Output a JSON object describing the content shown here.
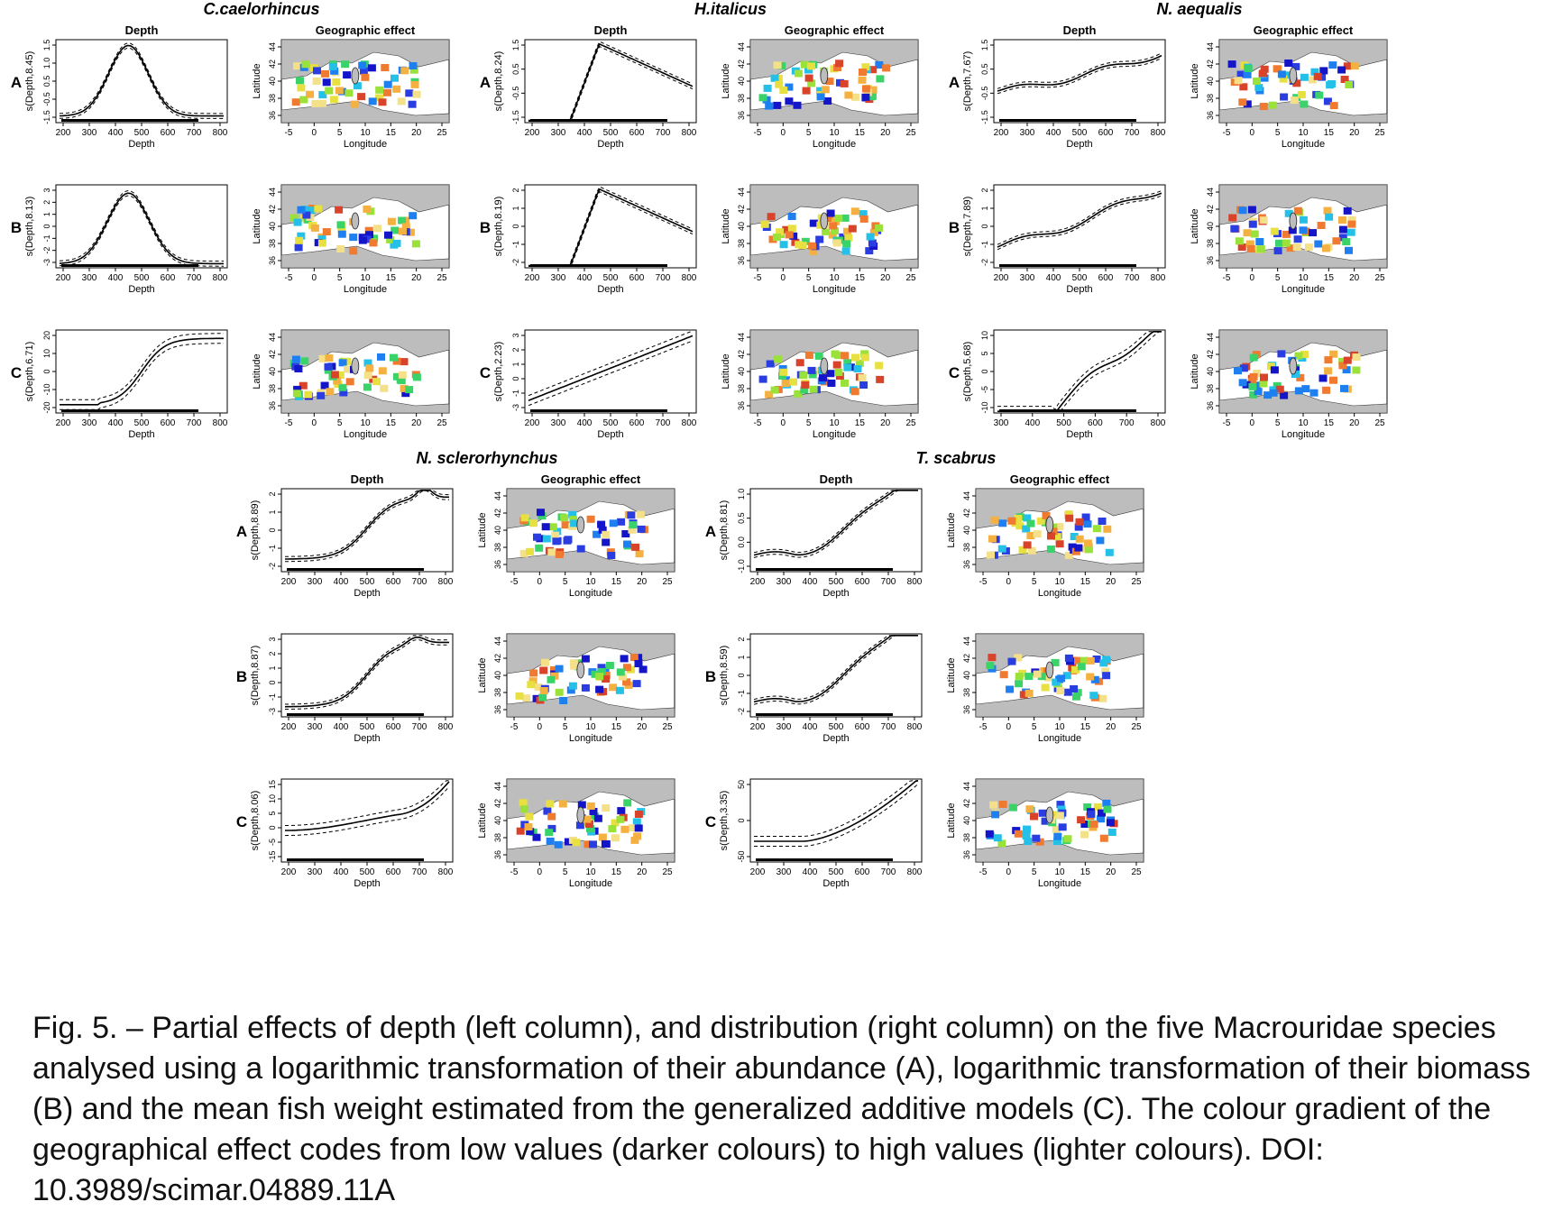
{
  "figure": {
    "axis_labels": {
      "depth_x": "Depth",
      "lon_x": "Longitude",
      "lat_y": "Latitude"
    },
    "panel_headers": {
      "depth": "Depth",
      "geo": "Geographic effect"
    },
    "row_letters": [
      "A",
      "B",
      "C"
    ],
    "map_ticks": {
      "lon": [
        "-5",
        "0",
        "5",
        "10",
        "15",
        "20",
        "25"
      ],
      "lat": [
        "36",
        "38",
        "40",
        "42",
        "44"
      ]
    },
    "colors": {
      "line": "#000000",
      "land": "#bdbdbd",
      "sea": "#ffffff",
      "dark_effect": "#1f1fd0",
      "light_effect": "#f5e08a"
    }
  },
  "species": [
    {
      "name": "C.caelorhincus",
      "rows": [
        {
          "ylab": "s(Depth,8.45)",
          "yticks": [
            "-1.5",
            "-0.5",
            "0.5",
            "1.0",
            "1.5"
          ],
          "xticks": [
            "200",
            "300",
            "400",
            "500",
            "600",
            "700",
            "800"
          ]
        },
        {
          "ylab": "s(Depth,8.13)",
          "yticks": [
            "-3",
            "-2",
            "-1",
            "0",
            "1",
            "2",
            "3"
          ],
          "xticks": [
            "200",
            "300",
            "400",
            "500",
            "600",
            "700",
            "800"
          ]
        },
        {
          "ylab": "s(Depth,6.71)",
          "yticks": [
            "-20",
            "-10",
            "0",
            "10",
            "20"
          ],
          "xticks": [
            "200",
            "300",
            "400",
            "500",
            "600",
            "700",
            "800"
          ]
        }
      ]
    },
    {
      "name": "H.italicus",
      "rows": [
        {
          "ylab": "s(Depth,8.24)",
          "yticks": [
            "-1.5",
            "-0.5",
            "0.5",
            "1.5"
          ],
          "xticks": [
            "200",
            "300",
            "400",
            "500",
            "600",
            "700",
            "800"
          ]
        },
        {
          "ylab": "s(Depth,8.19)",
          "yticks": [
            "-2",
            "-1",
            "0",
            "1",
            "2"
          ],
          "xticks": [
            "200",
            "300",
            "400",
            "500",
            "600",
            "700",
            "800"
          ]
        },
        {
          "ylab": "s(Depth,2.23)",
          "yticks": [
            "-3",
            "-1",
            "0",
            "1",
            "2",
            "3"
          ],
          "xticks": [
            "200",
            "300",
            "400",
            "500",
            "600",
            "700",
            "800"
          ]
        }
      ]
    },
    {
      "name": "N. aequalis",
      "rows": [
        {
          "ylab": "s(Depth,7.67)",
          "yticks": [
            "-1.5",
            "-0.5",
            "0.5",
            "1.5"
          ],
          "xticks": [
            "200",
            "300",
            "400",
            "500",
            "600",
            "700",
            "800"
          ]
        },
        {
          "ylab": "s(Depth,7.89)",
          "yticks": [
            "-2",
            "-1",
            "0",
            "1",
            "2"
          ],
          "xticks": [
            "200",
            "300",
            "400",
            "500",
            "600",
            "700",
            "800"
          ]
        },
        {
          "ylab": "s(Depth,5.68)",
          "yticks": [
            "-10",
            "-5",
            "0",
            "5",
            "10"
          ],
          "xticks": [
            "300",
            "400",
            "500",
            "600",
            "700",
            "800"
          ]
        }
      ]
    },
    {
      "name": "N. sclerorhynchus",
      "rows": [
        {
          "ylab": "s(Depth,8.89)",
          "yticks": [
            "-2",
            "-1",
            "0",
            "1",
            "2"
          ],
          "xticks": [
            "200",
            "300",
            "400",
            "500",
            "600",
            "700",
            "800"
          ]
        },
        {
          "ylab": "s(Depth,8.87)",
          "yticks": [
            "-3",
            "-1",
            "0",
            "1",
            "2",
            "3"
          ],
          "xticks": [
            "200",
            "300",
            "400",
            "500",
            "600",
            "700",
            "800"
          ]
        },
        {
          "ylab": "s(Depth,8.06)",
          "yticks": [
            "-15",
            "-5",
            "0",
            "5",
            "10",
            "15"
          ],
          "xticks": [
            "200",
            "300",
            "400",
            "500",
            "600",
            "700",
            "800"
          ]
        }
      ]
    },
    {
      "name": "T. scabrus",
      "rows": [
        {
          "ylab": "s(Depth,8.81)",
          "yticks": [
            "-1.0",
            "0.0",
            "0.5",
            "1.0"
          ],
          "xticks": [
            "200",
            "300",
            "400",
            "500",
            "600",
            "700",
            "800"
          ]
        },
        {
          "ylab": "s(Depth,8.59)",
          "yticks": [
            "-2",
            "-1",
            "0",
            "1",
            "2"
          ],
          "xticks": [
            "200",
            "300",
            "400",
            "500",
            "600",
            "700",
            "800"
          ]
        },
        {
          "ylab": "s(Depth,3.35)",
          "yticks": [
            "-50",
            "0",
            "50"
          ],
          "xticks": [
            "200",
            "300",
            "400",
            "500",
            "600",
            "700",
            "800"
          ]
        }
      ]
    }
  ],
  "caption": "Fig. 5. – Partial effects of depth (left column), and distribution (right column) on the five Macrouridae species analysed using a logarithmic transformation of their abundance (A), logarithmic transformation of their biomass (B) and the mean fish weight estimated from the generalized additive models (C). The colour gradient of the geographical effect codes from low values (darker colours) to high values (lighter colours). DOI: 10.3989/scimar.04889.11A"
}
